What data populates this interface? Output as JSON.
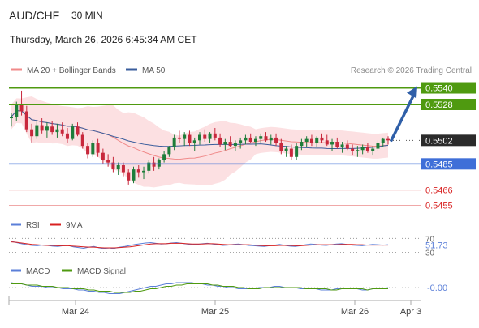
{
  "header": {
    "symbol": "AUD/CHF",
    "timeframe": "30 MIN",
    "datetime": "Thursday, March 26, 2026 6:45:34 AM CET"
  },
  "legend": {
    "bb": {
      "label": "MA 20 + Bollinger Bands",
      "color": "#f08a8a"
    },
    "ma50": {
      "label": "MA 50",
      "color": "#3a5d9c"
    },
    "credit": "Research © 2026 Trading Central"
  },
  "colors": {
    "candle_up": "#1e7d3a",
    "candle_down": "#c8283c",
    "bb_fill": "#fbd6d8",
    "resistance": "#4f9a10",
    "support": "#3f6fd8",
    "support_light": "#f0a8a8",
    "last_price": "#2b2b2b",
    "arrow": "#2f5fa8",
    "rsi": "#5b7fd8",
    "rsi_ma": "#d82020",
    "macd": "#5b7fd8",
    "macd_signal": "#4f9a10"
  },
  "chart_data": [
    {
      "type": "candlestick",
      "title": "AUD/CHF",
      "x_labels": [
        "Mar 24",
        "Mar 25",
        "Mar 26",
        "Apr 3"
      ],
      "ylim": [
        0.545,
        0.5545
      ],
      "series": [
        {
          "name": "AUD/CHF",
          "ohlc": [
            [
              0.5518,
              0.5522,
              0.5512,
              0.5519
            ],
            [
              0.5519,
              0.553,
              0.5516,
              0.5528
            ],
            [
              0.5528,
              0.5538,
              0.552,
              0.5523
            ],
            [
              0.5523,
              0.5527,
              0.5508,
              0.551
            ],
            [
              0.551,
              0.5514,
              0.55,
              0.5505
            ],
            [
              0.5505,
              0.5516,
              0.5503,
              0.5513
            ],
            [
              0.5513,
              0.5518,
              0.5507,
              0.5509
            ],
            [
              0.5509,
              0.5515,
              0.5504,
              0.5512
            ],
            [
              0.5512,
              0.5516,
              0.5506,
              0.5508
            ],
            [
              0.5508,
              0.5514,
              0.5504,
              0.551
            ],
            [
              0.551,
              0.5515,
              0.5505,
              0.5507
            ],
            [
              0.5507,
              0.5511,
              0.55,
              0.5503
            ],
            [
              0.5503,
              0.5514,
              0.5502,
              0.5512
            ],
            [
              0.5512,
              0.5515,
              0.5505,
              0.5506
            ],
            [
              0.5506,
              0.5508,
              0.5496,
              0.5498
            ],
            [
              0.5498,
              0.55,
              0.5489,
              0.5492
            ],
            [
              0.5492,
              0.5502,
              0.549,
              0.55
            ],
            [
              0.55,
              0.5503,
              0.549,
              0.5493
            ],
            [
              0.5493,
              0.5496,
              0.5485,
              0.5488
            ],
            [
              0.5488,
              0.5492,
              0.5483,
              0.5486
            ],
            [
              0.5486,
              0.549,
              0.5479,
              0.5481
            ],
            [
              0.5481,
              0.5486,
              0.5477,
              0.5484
            ],
            [
              0.5484,
              0.5486,
              0.5476,
              0.5479
            ],
            [
              0.5479,
              0.5481,
              0.547,
              0.5473
            ],
            [
              0.5473,
              0.5483,
              0.5471,
              0.5481
            ],
            [
              0.5481,
              0.5484,
              0.5475,
              0.5479
            ],
            [
              0.5479,
              0.5483,
              0.5474,
              0.548
            ],
            [
              0.548,
              0.5488,
              0.5478,
              0.5486
            ],
            [
              0.5486,
              0.549,
              0.548,
              0.5483
            ],
            [
              0.5483,
              0.5489,
              0.5481,
              0.5488
            ],
            [
              0.5488,
              0.5494,
              0.5486,
              0.5492
            ],
            [
              0.5492,
              0.5498,
              0.549,
              0.5497
            ],
            [
              0.5497,
              0.5506,
              0.5495,
              0.5504
            ],
            [
              0.5504,
              0.5509,
              0.55,
              0.5503
            ],
            [
              0.5503,
              0.5508,
              0.5498,
              0.5506
            ],
            [
              0.5506,
              0.5509,
              0.5498,
              0.55
            ],
            [
              0.55,
              0.5504,
              0.5494,
              0.5502
            ],
            [
              0.5502,
              0.5508,
              0.5499,
              0.5506
            ],
            [
              0.5506,
              0.551,
              0.5501,
              0.5503
            ],
            [
              0.5503,
              0.5508,
              0.55,
              0.5507
            ],
            [
              0.5507,
              0.5511,
              0.5502,
              0.5504
            ],
            [
              0.5504,
              0.5507,
              0.5497,
              0.5499
            ],
            [
              0.5499,
              0.5503,
              0.5495,
              0.5501
            ],
            [
              0.5501,
              0.5505,
              0.5497,
              0.5498
            ],
            [
              0.5498,
              0.5502,
              0.5494,
              0.55
            ],
            [
              0.55,
              0.5504,
              0.5496,
              0.5502
            ],
            [
              0.5502,
              0.5506,
              0.5499,
              0.5504
            ],
            [
              0.5504,
              0.5507,
              0.55,
              0.5501
            ],
            [
              0.5501,
              0.5505,
              0.5498,
              0.5503
            ],
            [
              0.5503,
              0.5507,
              0.55,
              0.5505
            ],
            [
              0.5505,
              0.5508,
              0.5501,
              0.5502
            ],
            [
              0.5502,
              0.5506,
              0.5499,
              0.5504
            ],
            [
              0.5504,
              0.5507,
              0.5498,
              0.55
            ],
            [
              0.55,
              0.5503,
              0.5492,
              0.5494
            ],
            [
              0.5494,
              0.5498,
              0.549,
              0.5496
            ],
            [
              0.5496,
              0.5499,
              0.5488,
              0.549
            ],
            [
              0.549,
              0.55,
              0.5488,
              0.5498
            ],
            [
              0.5498,
              0.5503,
              0.5495,
              0.5501
            ],
            [
              0.5501,
              0.5505,
              0.5497,
              0.5503
            ],
            [
              0.5503,
              0.5506,
              0.5498,
              0.55
            ],
            [
              0.55,
              0.5505,
              0.5497,
              0.5504
            ],
            [
              0.5504,
              0.5507,
              0.55,
              0.5502
            ],
            [
              0.5502,
              0.5506,
              0.5498,
              0.5499
            ],
            [
              0.5499,
              0.5503,
              0.5494,
              0.5501
            ],
            [
              0.5501,
              0.5504,
              0.5496,
              0.5497
            ],
            [
              0.5497,
              0.5501,
              0.5493,
              0.5499
            ],
            [
              0.5499,
              0.5502,
              0.5495,
              0.5496
            ],
            [
              0.5496,
              0.5499,
              0.5491,
              0.5494
            ],
            [
              0.5494,
              0.5498,
              0.549,
              0.5495
            ],
            [
              0.5495,
              0.5499,
              0.5492,
              0.5497
            ],
            [
              0.5497,
              0.55,
              0.5493,
              0.5494
            ],
            [
              0.5494,
              0.5498,
              0.5491,
              0.5496
            ],
            [
              0.5496,
              0.5502,
              0.5494,
              0.55
            ],
            [
              0.55,
              0.5504,
              0.5497,
              0.5503
            ],
            [
              0.5503,
              0.5505,
              0.5499,
              0.5502
            ]
          ]
        },
        {
          "name": "MA 20 + Bollinger Bands"
        },
        {
          "name": "MA 50"
        }
      ],
      "levels": [
        {
          "value": "0.5540",
          "kind": "resistance"
        },
        {
          "value": "0.5528",
          "kind": "resistance"
        },
        {
          "value": "0.5502",
          "kind": "last"
        },
        {
          "value": "0.5485",
          "kind": "support"
        },
        {
          "value": "0.5466",
          "kind": "support_light"
        },
        {
          "value": "0.5455",
          "kind": "support_light"
        }
      ],
      "arrow_target": 0.554
    },
    {
      "type": "line",
      "title": "RSI",
      "ylim": [
        20,
        80
      ],
      "reference_lines": [
        "70",
        "30"
      ],
      "current_value": "51.73",
      "series": [
        {
          "name": "RSI",
          "values": [
            62,
            58,
            55,
            52,
            50,
            49,
            51,
            50,
            48,
            47,
            49,
            50,
            46,
            44,
            42,
            45,
            47,
            43,
            41,
            40,
            42,
            45,
            47,
            50,
            53,
            55,
            57,
            58,
            56,
            54,
            55,
            57,
            58,
            56,
            54,
            52,
            53,
            55,
            56,
            54,
            52,
            50,
            51,
            53,
            54,
            52,
            50,
            49,
            48,
            47,
            49,
            51,
            53,
            50,
            48,
            47,
            49,
            52,
            54,
            53,
            51,
            50,
            52,
            54,
            55,
            53,
            51,
            50,
            49,
            51,
            53,
            52,
            51,
            52
          ]
        },
        {
          "name": "9MA",
          "values": [
            60,
            59,
            57,
            55,
            53,
            52,
            51,
            50,
            50,
            49,
            49,
            49,
            48,
            47,
            46,
            45,
            45,
            44,
            43,
            43,
            43,
            44,
            45,
            46,
            48,
            50,
            52,
            54,
            55,
            55,
            55,
            56,
            56,
            56,
            55,
            54,
            54,
            54,
            55,
            55,
            54,
            53,
            52,
            52,
            52,
            52,
            52,
            51,
            50,
            49,
            49,
            49,
            50,
            50,
            50,
            49,
            49,
            50,
            51,
            52,
            52,
            52,
            52,
            52,
            53,
            53,
            53,
            52,
            52,
            51,
            51,
            51,
            51,
            51
          ]
        }
      ]
    },
    {
      "type": "line",
      "title": "MACD",
      "ylim": [
        -0.0008,
        0.0008
      ],
      "current_value": "-0.00",
      "series": [
        {
          "name": "MACD",
          "values": [
            0.0004,
            0.0003,
            0.0003,
            0.0002,
            0.0001,
            0.0001,
            0.0001,
            0.0,
            0.0,
            0.0,
            -0.0001,
            -0.0001,
            -0.0001,
            -0.0002,
            -0.0002,
            -0.0003,
            -0.0003,
            -0.0004,
            -0.0004,
            -0.0005,
            -0.0005,
            -0.0005,
            -0.0004,
            -0.0003,
            -0.0002,
            -0.0001,
            0.0,
            0.0001,
            0.0001,
            0.0002,
            0.0003,
            0.0003,
            0.0004,
            0.0004,
            0.0004,
            0.0004,
            0.0003,
            0.0003,
            0.0002,
            0.0002,
            0.0001,
            0.0001,
            0.0,
            0.0,
            -0.0001,
            -0.0001,
            -0.0001,
            -0.0001,
            0.0,
            0.0,
            0.0,
            0.0001,
            0.0001,
            0.0,
            0.0,
            0.0,
            -0.0001,
            -0.0001,
            -0.0001,
            -0.0001,
            -0.0002,
            -0.0002,
            -0.0002,
            -0.0001,
            -0.0001,
            -0.0001,
            -0.0001,
            -0.0001,
            -0.0002,
            -0.0002,
            -0.0001,
            -0.0001,
            -0.0001,
            0.0
          ]
        },
        {
          "name": "MACD Signal",
          "values": [
            0.0003,
            0.0003,
            0.0003,
            0.0002,
            0.0002,
            0.0002,
            0.0001,
            0.0001,
            0.0001,
            0.0,
            0.0,
            0.0,
            -0.0001,
            -0.0001,
            -0.0001,
            -0.0002,
            -0.0002,
            -0.0003,
            -0.0003,
            -0.0003,
            -0.0004,
            -0.0004,
            -0.0004,
            -0.0004,
            -0.0003,
            -0.0003,
            -0.0002,
            -0.0001,
            -0.0001,
            0.0,
            0.0001,
            0.0001,
            0.0002,
            0.0002,
            0.0003,
            0.0003,
            0.0003,
            0.0003,
            0.0003,
            0.0002,
            0.0002,
            0.0001,
            0.0001,
            0.0001,
            0.0,
            0.0,
            -0.0001,
            -0.0001,
            -0.0001,
            0.0,
            0.0,
            0.0,
            0.0,
            0.0,
            0.0,
            0.0,
            0.0,
            -0.0001,
            -0.0001,
            -0.0001,
            -0.0001,
            -0.0001,
            -0.0002,
            -0.0002,
            -0.0001,
            -0.0001,
            -0.0001,
            -0.0001,
            -0.0001,
            -0.0002,
            -0.0001,
            -0.0001,
            -0.0001,
            -0.0001
          ]
        }
      ]
    }
  ]
}
